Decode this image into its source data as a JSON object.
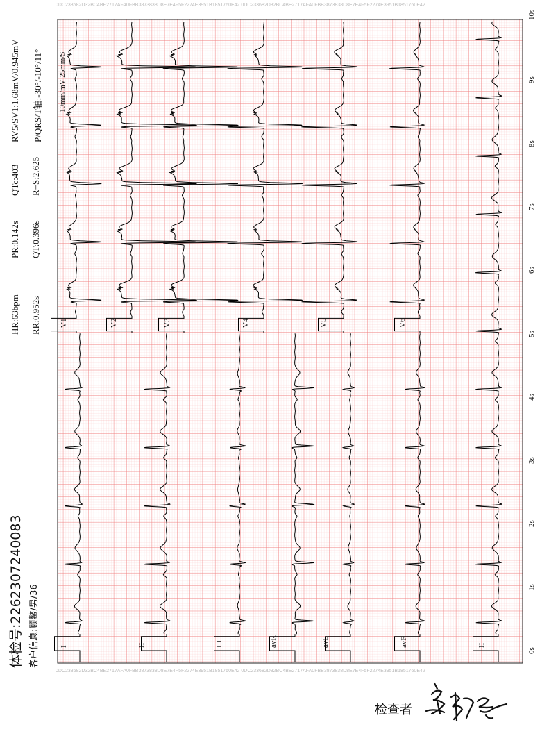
{
  "watermark": "0DC233682D32BC4BE2717AFA0FBB3873838D8E7E4F5F2274E3951B1851760E42  0DC233682D32BC4BE2717AFA0FBB3873838D8E7E4F5F2274E3951B1851760E42",
  "patient": {
    "id_label": "体检号:2262307240083",
    "info_label": "客户信息:顾鳌/男/36"
  },
  "measurements": {
    "hr": "HR:63bpm",
    "pr": "PR:0.142s",
    "qtc": "QTc:403",
    "rv5sv1": "RV5/SV1:1.68mV/0.945mV",
    "rr": "RR:0.952s",
    "qt": "QT:0.396s",
    "rs": "R+S:2.625",
    "axis": "P/QRS/T轴:-30°/-10°/11°"
  },
  "settings": {
    "gain_speed": "10mm/mV 25mm/S"
  },
  "leads_lower": [
    "I",
    "II",
    "III",
    "avR",
    "avL",
    "avF",
    "II"
  ],
  "leads_upper": [
    "V1",
    "V2",
    "V3",
    "V4",
    "V5",
    "V6"
  ],
  "time_labels": [
    "0s",
    "1s",
    "2s",
    "3s",
    "4s",
    "5s",
    "6s",
    "7s",
    "8s",
    "9s",
    "10s"
  ],
  "signature": {
    "label": "检查者"
  },
  "colors": {
    "grid_minor": "#f9c8c8",
    "grid_major": "#f08080",
    "trace": "#000000"
  }
}
